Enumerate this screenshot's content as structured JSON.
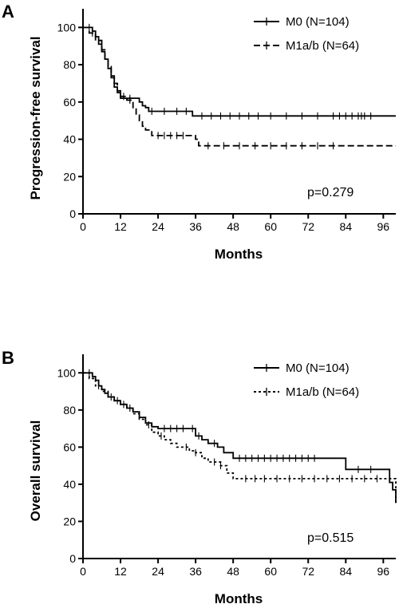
{
  "chart_data": [
    {
      "type": "line",
      "panel_label": "A",
      "title": "",
      "xlabel": "Months",
      "ylabel": "Progression-free survival",
      "xlim": [
        0,
        100
      ],
      "ylim": [
        0,
        110
      ],
      "xticks": [
        0,
        12,
        24,
        36,
        48,
        60,
        72,
        84,
        96
      ],
      "yticks": [
        0,
        20,
        40,
        60,
        80,
        100
      ],
      "legend_position": "top-right",
      "annotation": "p=0.279",
      "series": [
        {
          "name": "M0 (N=104)",
          "style": "solid",
          "color": "#000000",
          "x": [
            0,
            3,
            4,
            5,
            6,
            7,
            8,
            9,
            10,
            11,
            12,
            17,
            18,
            19,
            20,
            21,
            24,
            35,
            100
          ],
          "y": [
            100,
            98,
            95,
            91,
            87,
            83,
            78,
            73,
            68,
            65,
            62,
            62,
            60,
            58,
            57,
            55,
            55,
            52.5,
            52.5
          ],
          "censor_x": [
            2,
            15,
            22,
            26,
            30,
            33,
            38,
            41,
            44,
            47,
            50,
            53,
            56,
            60,
            65,
            70,
            75,
            80,
            82,
            84,
            86,
            88,
            89,
            90,
            92
          ]
        },
        {
          "name": "M1a/b (N=64)",
          "style": "dashed",
          "color": "#000000",
          "x": [
            0,
            2,
            4,
            6,
            7,
            8,
            9,
            10,
            11,
            12,
            14,
            16,
            17,
            18,
            19,
            20,
            22,
            34,
            36,
            37,
            100
          ],
          "y": [
            100,
            97,
            93,
            88,
            83,
            79,
            74,
            70,
            66,
            63,
            61,
            57,
            53,
            50,
            47,
            45,
            42,
            42,
            40,
            36.5,
            36.5
          ],
          "censor_x": [
            3,
            5,
            13,
            15,
            24,
            26,
            28,
            30,
            32,
            40,
            45,
            50,
            55,
            60,
            65,
            70,
            75,
            80
          ]
        }
      ]
    },
    {
      "type": "line",
      "panel_label": "B",
      "title": "",
      "xlabel": "Months",
      "ylabel": "Overall survival",
      "xlim": [
        0,
        100
      ],
      "ylim": [
        0,
        110
      ],
      "xticks": [
        0,
        12,
        24,
        36,
        48,
        60,
        72,
        84,
        96
      ],
      "yticks": [
        0,
        20,
        40,
        60,
        80,
        100
      ],
      "legend_position": "top-right",
      "annotation": "p=0.515",
      "series": [
        {
          "name": "M0 (N=104)",
          "style": "solid",
          "color": "#000000",
          "x": [
            0,
            3,
            4,
            5,
            6,
            7,
            8,
            10,
            12,
            14,
            16,
            18,
            20,
            22,
            24,
            34,
            36,
            38,
            40,
            43,
            45,
            48,
            84,
            98,
            99,
            100
          ],
          "y": [
            100,
            98,
            96,
            93,
            91,
            89,
            87,
            85,
            83,
            81,
            79,
            76,
            73,
            71,
            70,
            70,
            66,
            64,
            62,
            60,
            57,
            54,
            48,
            41,
            37,
            30
          ],
          "censor_x": [
            2,
            11,
            13,
            26,
            28,
            30,
            32,
            35,
            37,
            42,
            50,
            52,
            54,
            56,
            58,
            60,
            62,
            64,
            66,
            68,
            70,
            72,
            74,
            88,
            92
          ]
        },
        {
          "name": "M1a/b (N=64)",
          "style": "dotted",
          "color": "#000000",
          "x": [
            0,
            2,
            4,
            6,
            8,
            10,
            12,
            14,
            16,
            18,
            20,
            22,
            24,
            26,
            28,
            30,
            32,
            34,
            36,
            38,
            40,
            44,
            46,
            48,
            99,
            100
          ],
          "y": [
            100,
            97,
            93,
            90,
            87,
            85,
            83,
            81,
            78,
            75,
            72,
            68,
            66,
            64,
            62,
            60,
            60,
            58,
            57,
            54,
            52,
            50,
            46,
            43,
            43,
            30
          ],
          "censor_x": [
            5,
            9,
            15,
            21,
            25,
            33,
            36,
            42,
            44,
            52,
            55,
            58,
            62,
            66,
            70,
            74,
            78,
            82,
            86,
            90,
            94
          ]
        }
      ]
    }
  ]
}
